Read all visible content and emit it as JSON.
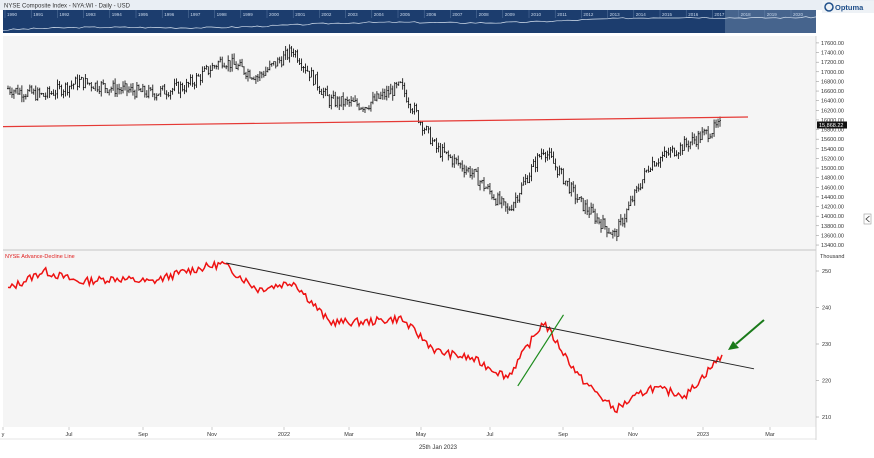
{
  "header": {
    "title": "NYSE Composite Index - NYA:WI - Daily - USD",
    "brand": "Optuma"
  },
  "overview_years": [
    "1990",
    "1991",
    "1992",
    "1993",
    "1994",
    "1995",
    "1996",
    "1997",
    "1998",
    "1999",
    "2000",
    "2001",
    "2002",
    "2003",
    "2004",
    "2005",
    "2006",
    "2007",
    "2008",
    "2009",
    "2010",
    "2011",
    "2012",
    "2013",
    "2014",
    "2015",
    "2016",
    "2017",
    "2018",
    "2019",
    "2020"
  ],
  "x_axis": {
    "labels": [
      "y",
      "Jul",
      "Sep",
      "Nov",
      "2022",
      "Mar",
      "May",
      "Jul",
      "Sep",
      "Nov",
      "2023",
      "Mar"
    ],
    "footer": "25th Jan 2023"
  },
  "colors": {
    "price": "#000000",
    "trendline_price": "#e53935",
    "ad_line": "#ee1111",
    "trendline_ad": "#222222",
    "breakout_line": "#1e8c1e",
    "arrow": "#1a7a1a",
    "last_price_tag_bg": "#111111"
  },
  "chart_data": [
    {
      "type": "line",
      "title": "NYSE Composite Index - NYA:WI - Daily - USD",
      "ylim": [
        13300,
        17900
      ],
      "y_ticks": [
        "17600.00",
        "17400.00",
        "17200.00",
        "17000.00",
        "16800.00",
        "16600.00",
        "16400.00",
        "16200.00",
        "16000.00",
        "15800.00",
        "15600.00",
        "15400.00",
        "15200.00",
        "15000.00",
        "14800.00",
        "14600.00",
        "14400.00",
        "14200.00",
        "14000.00",
        "13800.00",
        "13600.00",
        "13400.00"
      ],
      "last_value_label": "15,868.22",
      "x": [
        "May 2021",
        "Jun 2021",
        "Jul 2021",
        "Aug 2021",
        "Sep 2021",
        "Oct 2021",
        "Nov 2021",
        "Dec 2021",
        "Jan 2022",
        "Feb 2022",
        "Mar 2022",
        "Apr 2022",
        "May 2022",
        "Jun 2022",
        "Jul 2022",
        "Aug 2022",
        "Sep 2022",
        "Oct 2022",
        "Nov 2022",
        "Dec 2022",
        "Jan 2023"
      ],
      "values": [
        16650,
        16500,
        16800,
        16650,
        16550,
        16700,
        17250,
        16900,
        17450,
        16400,
        16300,
        16700,
        15400,
        14900,
        14100,
        15400,
        14300,
        13600,
        15100,
        15500,
        15900
      ],
      "trendline": {
        "from": [
          "May 2021",
          15860
        ],
        "to": [
          "Jan 2023",
          16060
        ]
      }
    },
    {
      "type": "line",
      "series_label": "NYSE Advance-Decline Line",
      "ylabel": "Thousand",
      "ylim": [
        206,
        254
      ],
      "y_ticks": [
        "250",
        "240",
        "230",
        "220",
        "210"
      ],
      "x": [
        "May 2021",
        "Jun 2021",
        "Jul 2021",
        "Aug 2021",
        "Sep 2021",
        "Oct 2021",
        "Nov 2021",
        "Dec 2021",
        "Jan 2022",
        "Feb 2022",
        "Mar 2022",
        "Apr 2022",
        "May 2022",
        "Jun 2022",
        "Jul 2022",
        "Aug 2022",
        "Sep 2022",
        "Oct 2022",
        "Nov 2022",
        "Dec 2022",
        "Jan 2023"
      ],
      "values": [
        245,
        250,
        247,
        248,
        247,
        250,
        252,
        245,
        247,
        236,
        236,
        237,
        228,
        226,
        221,
        236,
        221,
        212,
        218,
        216,
        227
      ],
      "trendline": {
        "from": [
          "Nov 2021",
          252.2
        ],
        "to": [
          "Feb 2023",
          223.2
        ]
      },
      "breakout_line": {
        "from": [
          "Jul 2022",
          218.5
        ],
        "to": [
          "Aug 2022",
          238
        ]
      }
    }
  ]
}
